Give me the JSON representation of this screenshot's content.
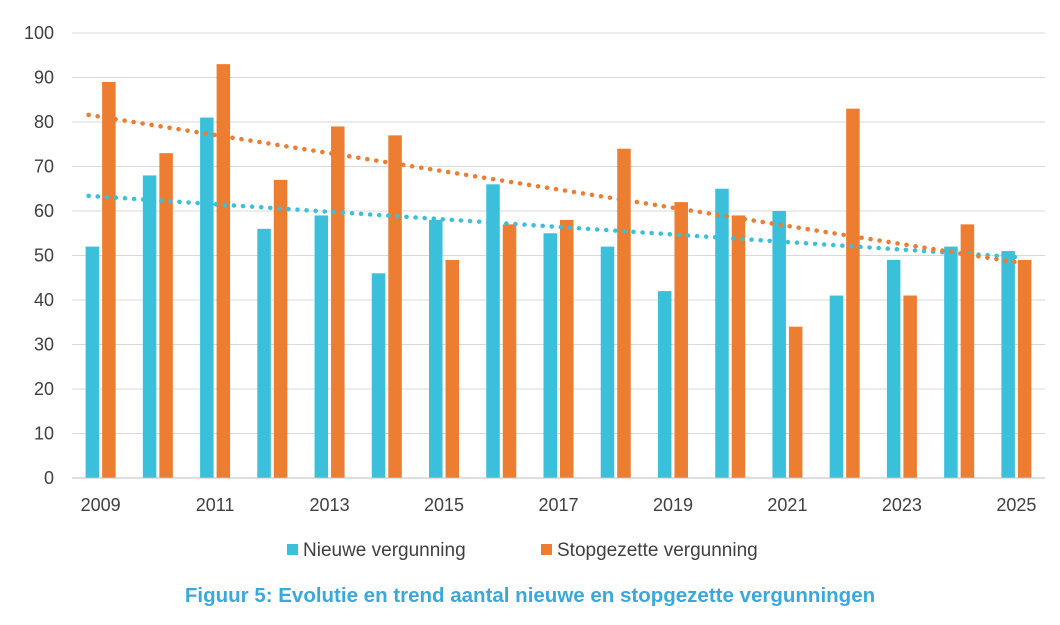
{
  "chart_data": {
    "type": "bar",
    "x": [
      2009,
      2010,
      2011,
      2012,
      2013,
      2014,
      2015,
      2016,
      2017,
      2018,
      2019,
      2020,
      2021,
      2022,
      2023,
      2024,
      2025
    ],
    "x_tick_labels": [
      "2009",
      "2011",
      "2013",
      "2015",
      "2017",
      "2019",
      "2021",
      "2023",
      "2025"
    ],
    "ylim": [
      0,
      100
    ],
    "y_ticks": [
      0,
      10,
      20,
      30,
      40,
      50,
      60,
      70,
      80,
      90,
      100
    ],
    "grid": true,
    "legend_position": "bottom",
    "series": [
      {
        "name": "Nieuwe vergunning",
        "color": "#3bc0dc",
        "values": [
          52,
          68,
          81,
          56,
          59,
          46,
          58,
          66,
          55,
          52,
          42,
          65,
          60,
          41,
          49,
          52,
          51
        ],
        "trend": {
          "start": 63.4,
          "end": 49.6,
          "color": "#3bc0dc",
          "style": "dotted"
        }
      },
      {
        "name": "Stopgezette vergunning",
        "color": "#ed7d31",
        "values": [
          89,
          73,
          93,
          67,
          79,
          77,
          49,
          57,
          58,
          74,
          62,
          59,
          34,
          83,
          41,
          57,
          49
        ],
        "trend": {
          "start": 81.6,
          "end": 48.4,
          "color": "#ed7d31",
          "style": "dotted"
        }
      }
    ]
  },
  "caption": "Figuur 5: Evolutie en trend aantal nieuwe en stopgezette vergunningen"
}
